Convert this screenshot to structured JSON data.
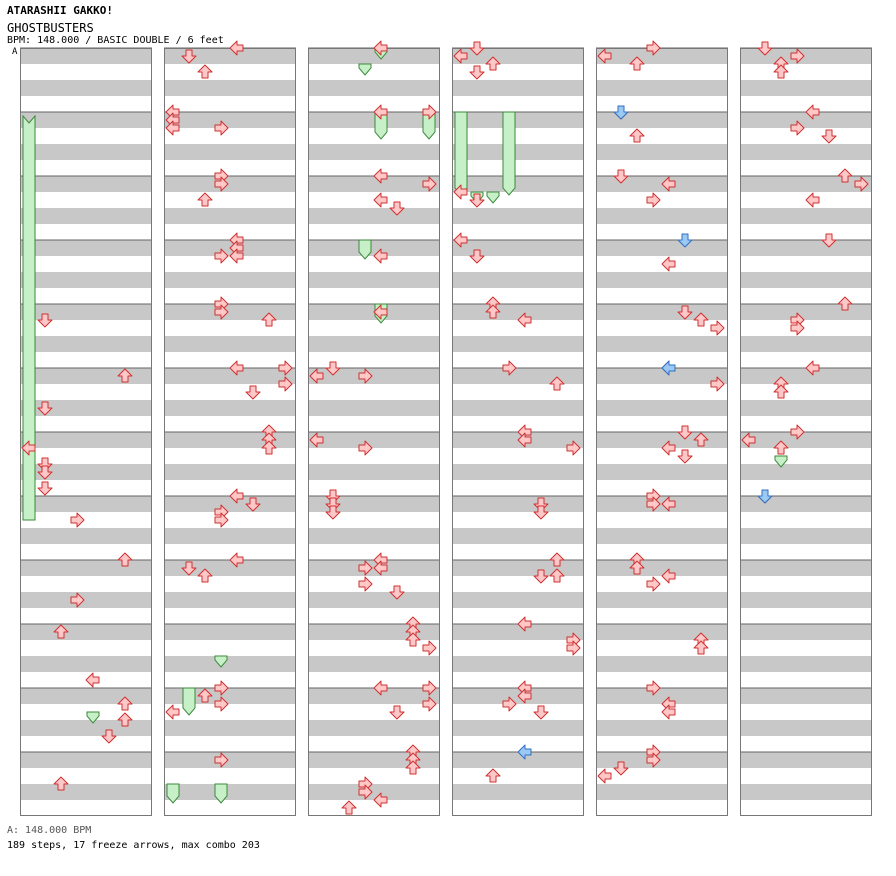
{
  "header": {
    "artist": "ATARASHII GAKKO!",
    "title": "GHOSTBUSTERS",
    "info": "BPM: 148.000 / BASIC DOUBLE / 6 feet"
  },
  "bpm_marker": {
    "label": "A",
    "color": "#6aa0e6"
  },
  "footer": {
    "bpm_legend": "A: 148.000 BPM",
    "summary": "189 steps, 17 freeze arrows, max combo 203"
  },
  "colors": {
    "stripe": "#c8c8c8",
    "arrow_fill": "#ffc8c8",
    "arrow_stroke": "#d03030",
    "shock_fill": "#9cc8f4",
    "shock_stroke": "#3070c0",
    "freeze_fill": "#c8f0c8",
    "freeze_stroke": "#3a8a3a"
  },
  "chart_data": {
    "type": "step-chart",
    "columns": 6,
    "measures_per_column": 12,
    "lanes": [
      "L1",
      "D1",
      "U1",
      "R1",
      "L2",
      "D2",
      "U2",
      "R2"
    ],
    "rows_per_measure": 8,
    "notes": [
      [
        0,
        4,
        2,
        1,
        "n"
      ],
      [
        0,
        5,
        1,
        6,
        "n"
      ],
      [
        0,
        5,
        5,
        1,
        "n"
      ],
      [
        0,
        6,
        2,
        0,
        "n"
      ],
      [
        0,
        6,
        4,
        1,
        "n"
      ],
      [
        0,
        6,
        5,
        1,
        "n"
      ],
      [
        0,
        6,
        7,
        1,
        "n"
      ],
      [
        0,
        7,
        3,
        3,
        "n"
      ],
      [
        0,
        8,
        0,
        6,
        "n"
      ],
      [
        0,
        8,
        5,
        3,
        "n"
      ],
      [
        0,
        9,
        1,
        2,
        "n"
      ],
      [
        0,
        9,
        7,
        4,
        "n"
      ],
      [
        0,
        10,
        2,
        6,
        "n"
      ],
      [
        0,
        10,
        4,
        6,
        "n"
      ],
      [
        0,
        10,
        6,
        5,
        "n"
      ],
      [
        0,
        11,
        4,
        2,
        "n"
      ],
      [
        1,
        0,
        0,
        4,
        "n"
      ],
      [
        1,
        0,
        1,
        1,
        "n"
      ],
      [
        1,
        0,
        3,
        2,
        "n"
      ],
      [
        1,
        1,
        0,
        0,
        "n"
      ],
      [
        1,
        1,
        1,
        0,
        "n"
      ],
      [
        1,
        1,
        2,
        0,
        "n"
      ],
      [
        1,
        1,
        2,
        3,
        "n"
      ],
      [
        1,
        2,
        0,
        3,
        "n"
      ],
      [
        1,
        2,
        1,
        3,
        "n"
      ],
      [
        1,
        2,
        3,
        2,
        "n"
      ],
      [
        1,
        3,
        0,
        4,
        "n"
      ],
      [
        1,
        3,
        1,
        4,
        "n"
      ],
      [
        1,
        3,
        2,
        3,
        "n"
      ],
      [
        1,
        3,
        2,
        4,
        "n"
      ],
      [
        1,
        4,
        0,
        3,
        "n"
      ],
      [
        1,
        4,
        1,
        3,
        "n"
      ],
      [
        1,
        4,
        2,
        6,
        "n"
      ],
      [
        1,
        5,
        0,
        4,
        "n"
      ],
      [
        1,
        5,
        0,
        7,
        "n"
      ],
      [
        1,
        5,
        2,
        7,
        "n"
      ],
      [
        1,
        5,
        3,
        5,
        "n"
      ],
      [
        1,
        6,
        0,
        6,
        "n"
      ],
      [
        1,
        6,
        1,
        6,
        "n"
      ],
      [
        1,
        6,
        2,
        6,
        "n"
      ],
      [
        1,
        7,
        0,
        4,
        "n"
      ],
      [
        1,
        7,
        1,
        5,
        "n"
      ],
      [
        1,
        7,
        2,
        3,
        "n"
      ],
      [
        1,
        7,
        3,
        3,
        "n"
      ],
      [
        1,
        8,
        0,
        4,
        "n"
      ],
      [
        1,
        8,
        1,
        1,
        "n"
      ],
      [
        1,
        8,
        2,
        2,
        "n"
      ],
      [
        1,
        10,
        0,
        3,
        "n"
      ],
      [
        1,
        10,
        1,
        2,
        "n"
      ],
      [
        1,
        10,
        2,
        3,
        "n"
      ],
      [
        1,
        10,
        3,
        0,
        "n"
      ],
      [
        1,
        11,
        1,
        3,
        "n"
      ],
      [
        2,
        0,
        0,
        4,
        "n"
      ],
      [
        2,
        1,
        0,
        4,
        "n"
      ],
      [
        2,
        1,
        0,
        7,
        "n"
      ],
      [
        2,
        2,
        0,
        4,
        "n"
      ],
      [
        2,
        2,
        1,
        7,
        "n"
      ],
      [
        2,
        2,
        3,
        4,
        "n"
      ],
      [
        2,
        2,
        4,
        5,
        "n"
      ],
      [
        2,
        3,
        2,
        4,
        "n"
      ],
      [
        2,
        4,
        1,
        4,
        "n"
      ],
      [
        2,
        5,
        0,
        1,
        "n"
      ],
      [
        2,
        5,
        1,
        0,
        "n"
      ],
      [
        2,
        5,
        1,
        3,
        "n"
      ],
      [
        2,
        6,
        1,
        0,
        "n"
      ],
      [
        2,
        6,
        2,
        3,
        "n"
      ],
      [
        2,
        7,
        0,
        1,
        "n"
      ],
      [
        2,
        7,
        1,
        1,
        "n"
      ],
      [
        2,
        7,
        2,
        1,
        "n"
      ],
      [
        2,
        8,
        0,
        4,
        "n"
      ],
      [
        2,
        8,
        1,
        3,
        "n"
      ],
      [
        2,
        8,
        1,
        4,
        "n"
      ],
      [
        2,
        8,
        3,
        3,
        "n"
      ],
      [
        2,
        8,
        4,
        5,
        "n"
      ],
      [
        2,
        9,
        0,
        6,
        "n"
      ],
      [
        2,
        9,
        1,
        6,
        "n"
      ],
      [
        2,
        9,
        2,
        6,
        "n"
      ],
      [
        2,
        9,
        3,
        7,
        "n"
      ],
      [
        2,
        10,
        0,
        4,
        "n"
      ],
      [
        2,
        10,
        0,
        7,
        "n"
      ],
      [
        2,
        10,
        2,
        7,
        "n"
      ],
      [
        2,
        10,
        3,
        5,
        "n"
      ],
      [
        2,
        11,
        0,
        6,
        "n"
      ],
      [
        2,
        11,
        1,
        6,
        "n"
      ],
      [
        2,
        11,
        2,
        6,
        "n"
      ],
      [
        2,
        11,
        4,
        3,
        "n"
      ],
      [
        2,
        11,
        5,
        3,
        "n"
      ],
      [
        2,
        11,
        6,
        4,
        "n"
      ],
      [
        2,
        11,
        7,
        2,
        "n"
      ],
      [
        3,
        0,
        0,
        1,
        "n"
      ],
      [
        3,
        0,
        1,
        0,
        "n"
      ],
      [
        3,
        0,
        2,
        2,
        "n"
      ],
      [
        3,
        0,
        3,
        1,
        "n"
      ],
      [
        3,
        2,
        2,
        0,
        "n"
      ],
      [
        3,
        2,
        3,
        1,
        "n"
      ],
      [
        3,
        3,
        0,
        0,
        "n"
      ],
      [
        3,
        3,
        2,
        1,
        "n"
      ],
      [
        3,
        4,
        0,
        2,
        "n"
      ],
      [
        3,
        4,
        1,
        2,
        "n"
      ],
      [
        3,
        4,
        2,
        4,
        "n"
      ],
      [
        3,
        5,
        0,
        3,
        "n"
      ],
      [
        3,
        5,
        2,
        6,
        "n"
      ],
      [
        3,
        6,
        0,
        4,
        "n"
      ],
      [
        3,
        6,
        1,
        4,
        "n"
      ],
      [
        3,
        6,
        2,
        7,
        "n"
      ],
      [
        3,
        7,
        1,
        5,
        "n"
      ],
      [
        3,
        7,
        2,
        5,
        "n"
      ],
      [
        3,
        8,
        0,
        6,
        "n"
      ],
      [
        3,
        8,
        2,
        6,
        "n"
      ],
      [
        3,
        8,
        2,
        5,
        "n"
      ],
      [
        3,
        9,
        0,
        4,
        "n"
      ],
      [
        3,
        9,
        2,
        7,
        "n"
      ],
      [
        3,
        9,
        3,
        7,
        "n"
      ],
      [
        3,
        10,
        0,
        4,
        "n"
      ],
      [
        3,
        10,
        1,
        4,
        "n"
      ],
      [
        3,
        10,
        2,
        3,
        "n"
      ],
      [
        3,
        10,
        3,
        5,
        "n"
      ],
      [
        3,
        11,
        0,
        4,
        "s"
      ],
      [
        3,
        11,
        3,
        2,
        "n"
      ],
      [
        4,
        0,
        0,
        3,
        "n"
      ],
      [
        4,
        0,
        1,
        0,
        "n"
      ],
      [
        4,
        0,
        2,
        2,
        "n"
      ],
      [
        4,
        1,
        0,
        1,
        "n"
      ],
      [
        4,
        1,
        0,
        1,
        "s"
      ],
      [
        4,
        1,
        3,
        2,
        "n"
      ],
      [
        4,
        2,
        0,
        1,
        "n"
      ],
      [
        4,
        2,
        1,
        4,
        "n"
      ],
      [
        4,
        2,
        3,
        3,
        "n"
      ],
      [
        4,
        3,
        0,
        5,
        "s"
      ],
      [
        4,
        3,
        3,
        4,
        "n"
      ],
      [
        4,
        4,
        1,
        5,
        "n"
      ],
      [
        4,
        4,
        2,
        6,
        "n"
      ],
      [
        4,
        4,
        3,
        7,
        "n"
      ],
      [
        4,
        5,
        0,
        4,
        "n"
      ],
      [
        4,
        5,
        0,
        4,
        "s"
      ],
      [
        4,
        5,
        2,
        7,
        "n"
      ],
      [
        4,
        6,
        0,
        5,
        "n"
      ],
      [
        4,
        6,
        1,
        6,
        "n"
      ],
      [
        4,
        6,
        2,
        4,
        "n"
      ],
      [
        4,
        6,
        3,
        5,
        "n"
      ],
      [
        4,
        7,
        0,
        3,
        "n"
      ],
      [
        4,
        7,
        1,
        3,
        "n"
      ],
      [
        4,
        7,
        1,
        4,
        "n"
      ],
      [
        4,
        8,
        0,
        2,
        "n"
      ],
      [
        4,
        8,
        1,
        2,
        "n"
      ],
      [
        4,
        8,
        2,
        4,
        "n"
      ],
      [
        4,
        8,
        3,
        3,
        "n"
      ],
      [
        4,
        9,
        2,
        6,
        "n"
      ],
      [
        4,
        9,
        3,
        6,
        "n"
      ],
      [
        4,
        10,
        0,
        3,
        "n"
      ],
      [
        4,
        10,
        2,
        4,
        "n"
      ],
      [
        4,
        10,
        3,
        4,
        "n"
      ],
      [
        4,
        11,
        0,
        3,
        "n"
      ],
      [
        4,
        11,
        1,
        3,
        "n"
      ],
      [
        4,
        11,
        2,
        1,
        "n"
      ],
      [
        4,
        11,
        3,
        0,
        "n"
      ],
      [
        5,
        0,
        0,
        1,
        "n"
      ],
      [
        5,
        0,
        1,
        3,
        "n"
      ],
      [
        5,
        0,
        2,
        2,
        "n"
      ],
      [
        5,
        0,
        3,
        2,
        "n"
      ],
      [
        5,
        1,
        0,
        4,
        "n"
      ],
      [
        5,
        1,
        2,
        3,
        "n"
      ],
      [
        5,
        1,
        3,
        5,
        "n"
      ],
      [
        5,
        2,
        0,
        6,
        "n"
      ],
      [
        5,
        2,
        1,
        7,
        "n"
      ],
      [
        5,
        2,
        3,
        4,
        "n"
      ],
      [
        5,
        3,
        0,
        5,
        "n"
      ],
      [
        5,
        4,
        0,
        6,
        "n"
      ],
      [
        5,
        4,
        2,
        3,
        "n"
      ],
      [
        5,
        4,
        3,
        3,
        "n"
      ],
      [
        5,
        5,
        0,
        4,
        "n"
      ],
      [
        5,
        5,
        2,
        2,
        "n"
      ],
      [
        5,
        5,
        3,
        2,
        "n"
      ],
      [
        5,
        6,
        0,
        3,
        "n"
      ],
      [
        5,
        6,
        1,
        0,
        "n"
      ],
      [
        5,
        6,
        2,
        2,
        "n"
      ],
      [
        5,
        7,
        0,
        1,
        "n"
      ],
      [
        5,
        7,
        0,
        1,
        "s"
      ]
    ],
    "freezes": [
      [
        0,
        7,
        3,
        0,
        8,
        1,
        1
      ],
      [
        1,
        11,
        4,
        0,
        1,
        11,
        6,
        0
      ],
      [
        1,
        11,
        4,
        3,
        1,
        11,
        6,
        3
      ],
      [
        1,
        9,
        4,
        3,
        1,
        9,
        5,
        3
      ],
      [
        1,
        10,
        0,
        1,
        1,
        10,
        3,
        1
      ],
      [
        2,
        0,
        0,
        4,
        2,
        0,
        1,
        4
      ],
      [
        2,
        0,
        2,
        3,
        2,
        0,
        3,
        3
      ],
      [
        2,
        1,
        0,
        4,
        2,
        1,
        3,
        4
      ],
      [
        2,
        1,
        0,
        7,
        2,
        1,
        3,
        7
      ],
      [
        2,
        3,
        0,
        3,
        2,
        3,
        2,
        3
      ],
      [
        2,
        4,
        0,
        4,
        2,
        4,
        2,
        4
      ],
      [
        3,
        1,
        0,
        0,
        3,
        2,
        2,
        0
      ],
      [
        3,
        1,
        0,
        3,
        3,
        2,
        2,
        3
      ],
      [
        3,
        2,
        2,
        1,
        3,
        2,
        3,
        1
      ],
      [
        3,
        2,
        2,
        2,
        3,
        2,
        3,
        2
      ],
      [
        0,
        10,
        3,
        4,
        0,
        10,
        4,
        4
      ],
      [
        5,
        6,
        3,
        2,
        5,
        6,
        4,
        2
      ]
    ]
  }
}
